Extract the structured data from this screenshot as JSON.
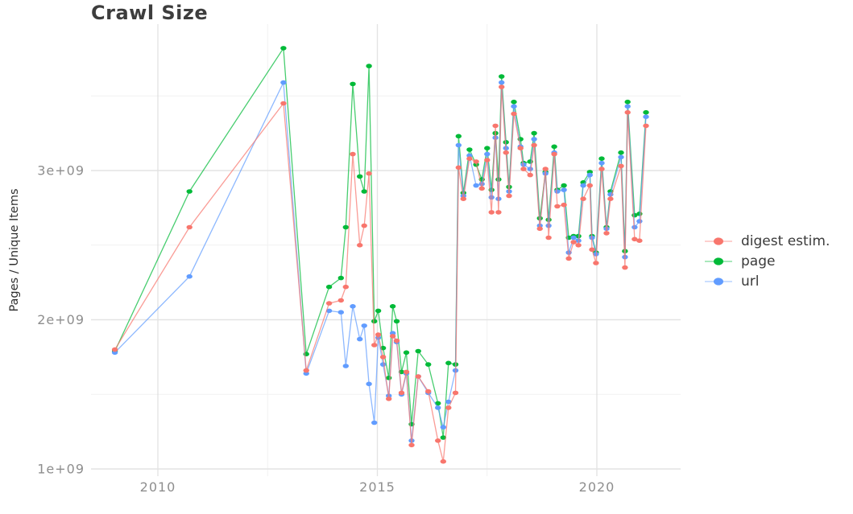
{
  "chart_data": {
    "type": "line",
    "title": "Crawl Size",
    "xlabel": "",
    "ylabel": "Pages / Unique Items",
    "unit": "pages (value of 1 = 1e+09)",
    "legend_position": "right",
    "grid": "on",
    "xlim": [
      2008.5,
      2021.9
    ],
    "ylim": [
      0.95,
      3.98
    ],
    "x_ticks": [
      {
        "value": 2010,
        "label": "2010"
      },
      {
        "value": 2015,
        "label": "2015"
      },
      {
        "value": 2020,
        "label": "2020"
      }
    ],
    "y_ticks": [
      {
        "value": 1,
        "label": "1e+09"
      },
      {
        "value": 2,
        "label": "2e+09"
      },
      {
        "value": 3,
        "label": "3e+09"
      }
    ],
    "x_minor_gridlines": [
      2012.5,
      2017.5
    ],
    "y_minor_gridlines": [
      1.5,
      2.5,
      3.5
    ],
    "x": [
      2009.02,
      2010.72,
      2012.86,
      2013.38,
      2013.9,
      2014.17,
      2014.28,
      2014.44,
      2014.6,
      2014.7,
      2014.81,
      2014.93,
      2015.02,
      2015.13,
      2015.26,
      2015.35,
      2015.44,
      2015.55,
      2015.66,
      2015.78,
      2015.93,
      2016.16,
      2016.38,
      2016.5,
      2016.62,
      2016.78,
      2016.85,
      2016.96,
      2017.1,
      2017.25,
      2017.38,
      2017.5,
      2017.6,
      2017.69,
      2017.76,
      2017.83,
      2017.93,
      2018.0,
      2018.11,
      2018.26,
      2018.33,
      2018.48,
      2018.57,
      2018.7,
      2018.83,
      2018.9,
      2019.03,
      2019.1,
      2019.25,
      2019.36,
      2019.47,
      2019.58,
      2019.69,
      2019.84,
      2019.89,
      2019.98,
      2020.11,
      2020.22,
      2020.31,
      2020.55,
      2020.64,
      2020.7,
      2020.86,
      2020.97,
      2021.12
    ],
    "series": [
      {
        "name": "digest estim.",
        "color": "#F8766D",
        "values": [
          1.8,
          2.62,
          3.45,
          1.66,
          2.11,
          2.13,
          2.22,
          3.11,
          2.5,
          2.63,
          2.98,
          1.83,
          1.9,
          1.75,
          1.47,
          1.89,
          1.86,
          1.51,
          1.65,
          1.16,
          1.62,
          1.52,
          1.19,
          1.05,
          1.41,
          1.51,
          3.02,
          2.81,
          3.08,
          3.06,
          2.88,
          3.07,
          2.72,
          3.3,
          2.72,
          3.56,
          3.12,
          2.83,
          3.38,
          3.15,
          3.01,
          2.97,
          3.17,
          2.61,
          3.01,
          2.55,
          3.11,
          2.76,
          2.77,
          2.41,
          2.52,
          2.5,
          2.81,
          2.9,
          2.47,
          2.38,
          3.01,
          2.58,
          2.81,
          3.03,
          2.35,
          3.39,
          2.54,
          2.53,
          3.3
        ]
      },
      {
        "name": "page",
        "color": "#00BA38",
        "values": [
          1.79,
          2.86,
          3.82,
          1.77,
          2.22,
          2.28,
          2.62,
          3.58,
          2.96,
          2.86,
          3.7,
          1.99,
          2.06,
          1.81,
          1.61,
          2.09,
          1.99,
          1.65,
          1.78,
          1.3,
          1.79,
          1.7,
          1.44,
          1.21,
          1.71,
          1.7,
          3.23,
          2.85,
          3.14,
          3.04,
          2.94,
          3.15,
          2.87,
          3.25,
          2.94,
          3.63,
          3.19,
          2.89,
          3.46,
          3.21,
          3.05,
          3.06,
          3.25,
          2.68,
          2.99,
          2.67,
          3.16,
          2.87,
          2.9,
          2.55,
          2.56,
          2.56,
          2.92,
          2.99,
          2.56,
          2.45,
          3.08,
          2.62,
          2.86,
          3.12,
          2.46,
          3.46,
          2.7,
          2.71,
          3.39
        ]
      },
      {
        "name": "url",
        "color": "#619CFF",
        "values": [
          1.78,
          2.29,
          3.59,
          1.64,
          2.06,
          2.05,
          1.69,
          2.09,
          1.87,
          1.96,
          1.57,
          1.31,
          1.88,
          1.7,
          1.49,
          1.91,
          1.85,
          1.5,
          1.64,
          1.19,
          1.62,
          1.51,
          1.41,
          1.28,
          1.45,
          1.66,
          3.17,
          2.83,
          3.1,
          2.9,
          2.91,
          3.11,
          2.82,
          3.22,
          2.81,
          3.59,
          3.15,
          2.86,
          3.43,
          3.16,
          3.04,
          3.01,
          3.21,
          2.63,
          2.98,
          2.63,
          3.12,
          2.86,
          2.87,
          2.45,
          2.55,
          2.53,
          2.9,
          2.97,
          2.55,
          2.44,
          3.05,
          2.61,
          2.84,
          3.09,
          2.42,
          3.43,
          2.62,
          2.66,
          3.36
        ]
      }
    ]
  }
}
